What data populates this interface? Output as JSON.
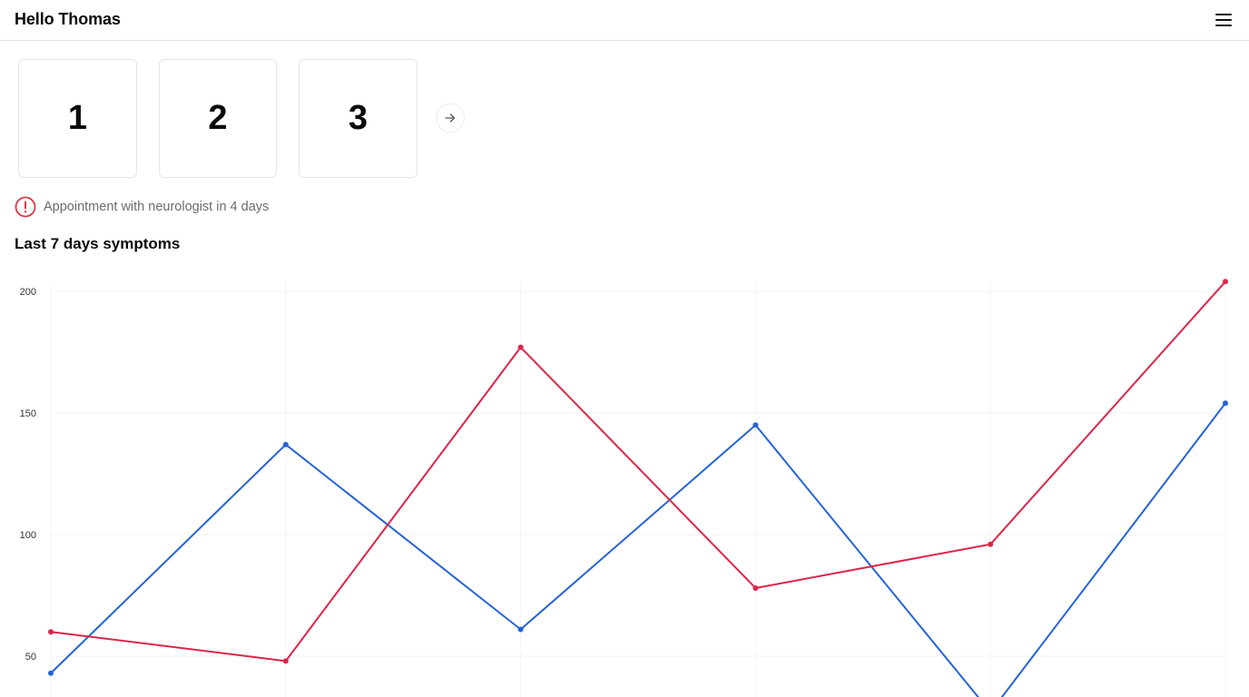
{
  "header": {
    "greeting": "Hello Thomas",
    "menu_icon": "hamburger-menu-icon"
  },
  "carousel": {
    "cards": [
      {
        "label": "1"
      },
      {
        "label": "2"
      },
      {
        "label": "3"
      }
    ],
    "next_icon": "arrow-right-icon"
  },
  "alert": {
    "icon": "alert-circle-icon",
    "text": "Appointment with neurologist in 4 days",
    "color": "#dc3545"
  },
  "section": {
    "title": "Last 7 days symptoms"
  },
  "chart_data": {
    "type": "line",
    "x": [
      1,
      2,
      3,
      4,
      5,
      6
    ],
    "ylim": [
      36,
      204
    ],
    "yticks": [
      50,
      100,
      150,
      200
    ],
    "grid": true,
    "series": [
      {
        "color": "#2563d9",
        "values": [
          43,
          137,
          61,
          145,
          27,
          154
        ]
      },
      {
        "color": "#dc2648",
        "values": [
          60,
          48,
          177,
          78,
          96,
          204
        ]
      }
    ]
  }
}
